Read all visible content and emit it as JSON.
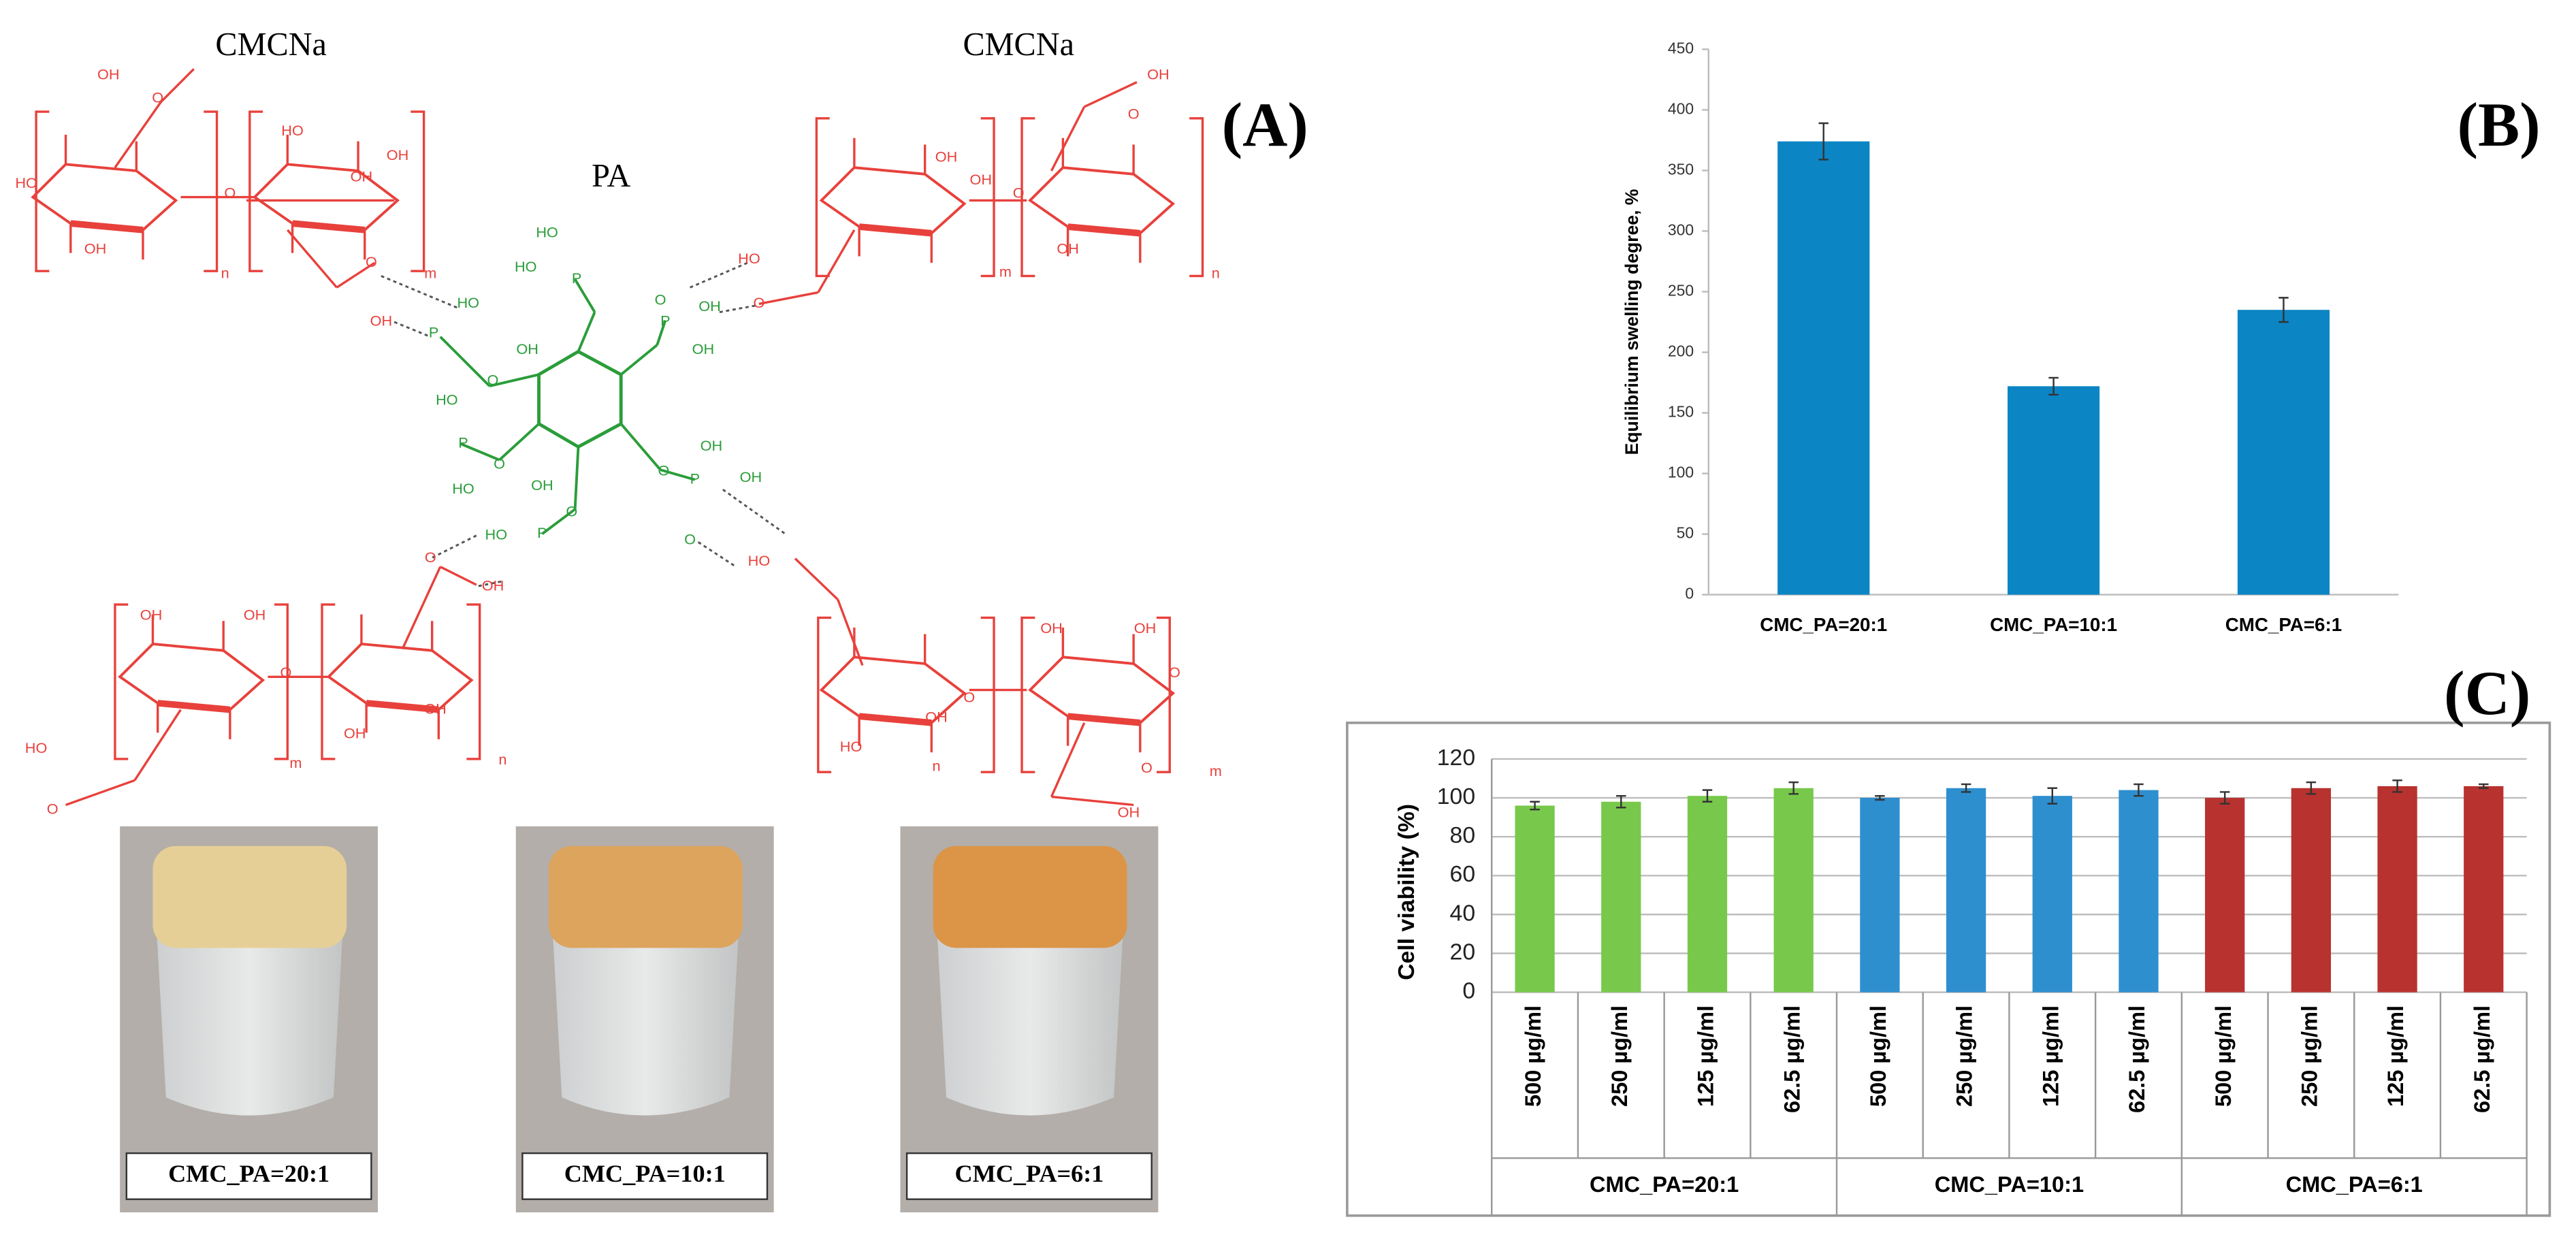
{
  "panel_labels": [
    "(A)",
    "(B)",
    "(C)"
  ],
  "structure": {
    "left_label": "CMCNa",
    "right_label": "CMCNa",
    "center_label": "PA",
    "atoms": [
      "HO",
      "OH",
      "OH",
      "O",
      "O",
      "HO",
      "OH",
      "OH",
      "O",
      "OH",
      "n",
      "m",
      "OH",
      "O",
      "HO",
      "O",
      "O",
      "OH",
      "OH",
      "OH",
      "m",
      "n",
      "HO",
      "HO",
      "P",
      "HO",
      "P",
      "OH",
      "O",
      "O",
      "P",
      "OH",
      "OH",
      "HO",
      "P",
      "HO",
      "O",
      "OH",
      "P",
      "HO",
      "O",
      "OH",
      "P",
      "OH",
      "O",
      "O",
      "HO",
      "OH",
      "O",
      "HO",
      "O",
      "OH",
      "OH",
      "m",
      "n",
      "O",
      "OH",
      "OH",
      "HO",
      "OH",
      "O",
      "OH",
      "OH",
      "O",
      "OH",
      "O",
      "n",
      "m"
    ]
  },
  "photos": {
    "captions": [
      "CMC_PA=20:1",
      "CMC_PA=10:1",
      "CMC_PA=6:1"
    ]
  },
  "chart_data": [
    {
      "type": "bar",
      "ylabel": "Equilibrium swelling degree, %",
      "categories": [
        "CMC_PA=20:1",
        "CMC_PA=10:1",
        "CMC_PA=6:1"
      ],
      "values": [
        374,
        172,
        235
      ],
      "errors": [
        15,
        7,
        10
      ],
      "color": "#0b85c4",
      "ylim": [
        0,
        450
      ],
      "yticks": [
        0,
        50,
        100,
        150,
        200,
        250,
        300,
        350,
        400,
        450
      ],
      "grid": false
    },
    {
      "type": "grouped_bar",
      "ylabel": "Cell viability (%)",
      "groups": [
        {
          "name": "CMC_PA=20:1",
          "color": "#78c94b",
          "categories": [
            "500 µg/ml",
            "250 µg/ml",
            "125 µg/ml",
            "62.5 µg/ml"
          ],
          "values": [
            96,
            98,
            101,
            105
          ],
          "errors": [
            2,
            3,
            3,
            3
          ]
        },
        {
          "name": "CMC_PA=10:1",
          "color": "#2e8fcf",
          "categories": [
            "500 µg/ml",
            "250 µg/ml",
            "125 µg/ml",
            "62.5 µg/ml"
          ],
          "values": [
            100,
            105,
            101,
            104
          ],
          "errors": [
            1,
            2,
            4,
            3
          ]
        },
        {
          "name": "CMC_PA=6:1",
          "color": "#b8322f",
          "categories": [
            "500 µg/ml",
            "250 µg/ml",
            "125 µg/ml",
            "62.5 µg/ml"
          ],
          "values": [
            100,
            105,
            106,
            106
          ],
          "errors": [
            3,
            3,
            3,
            1
          ]
        }
      ],
      "ylim": [
        0,
        120
      ],
      "yticks": [
        0,
        20,
        40,
        60,
        80,
        100,
        120
      ],
      "grid": true
    }
  ]
}
